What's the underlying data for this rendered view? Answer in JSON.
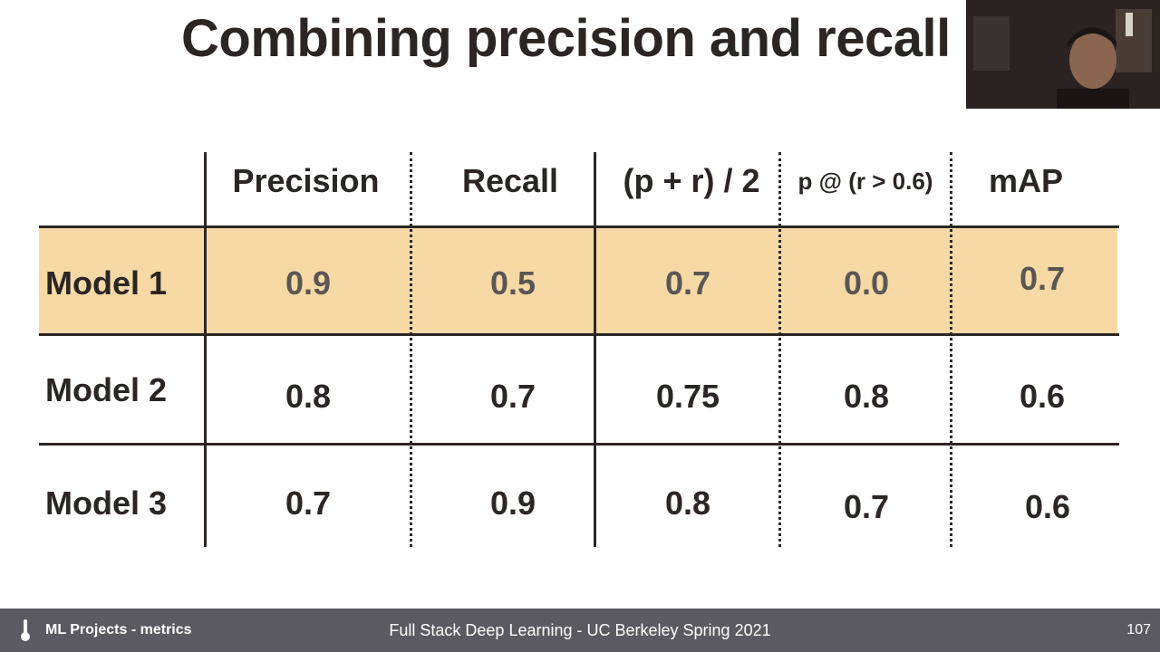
{
  "slide": {
    "title": "Combining precision and recall"
  },
  "table": {
    "columns": [
      "Precision",
      "Recall",
      "(p + r) / 2",
      "p @ (r > 0.6)",
      "mAP"
    ],
    "rows": [
      {
        "label": "Model 1",
        "values": [
          "0.9",
          "0.5",
          "0.7",
          "0.0",
          "0.7"
        ],
        "highlighted": true
      },
      {
        "label": "Model 2",
        "values": [
          "0.8",
          "0.7",
          "0.75",
          "0.8",
          "0.6"
        ],
        "highlighted": false
      },
      {
        "label": "Model 3",
        "values": [
          "0.7",
          "0.9",
          "0.8",
          "0.7",
          "0.6"
        ],
        "highlighted": false
      }
    ],
    "highlight_color": "#f6d9a5"
  },
  "footer": {
    "left_label": "ML Projects - metrics",
    "center_label": "Full Stack Deep Learning - UC Berkeley Spring 2021",
    "page_number": "107",
    "icon": "thermometer-icon",
    "background_color": "#5b5a63"
  }
}
